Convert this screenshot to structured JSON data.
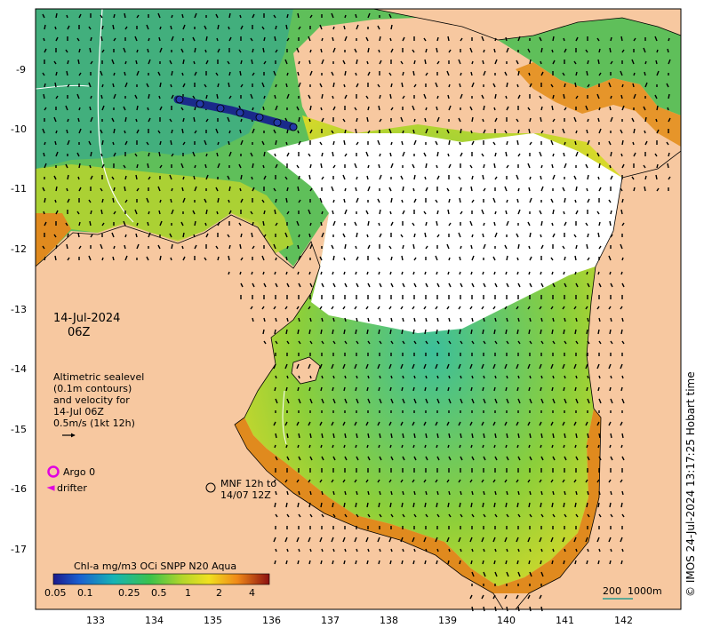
{
  "map": {
    "date_line1": "14-Jul-2024",
    "date_line2": "06Z",
    "legend_note": {
      "lines": [
        "Altimetric sealevel",
        "(0.1m contours)",
        "and velocity for",
        "14-Jul 06Z",
        "0.5m/s (1kt 12h)"
      ]
    },
    "argo_label": "Argo 0",
    "drifter_label": "drifter",
    "mnf_label_line1": "MNF 12h to",
    "mnf_label_line2": "14/07 12Z",
    "scale_bar": {
      "left_label": "200",
      "right_label": "1000m"
    },
    "credit": "© IMOS 24-Jul-2024 13:17:25 Hobart time",
    "colorbar": {
      "title": "Chl-a mg/m3 OCi SNPP N20 Aqua",
      "ticks": [
        "0.05",
        "0.1",
        "0.25",
        "0.5",
        "1",
        "2",
        "4"
      ]
    },
    "axes": {
      "lon_ticks": [
        "133",
        "134",
        "135",
        "136",
        "137",
        "138",
        "139",
        "140",
        "141",
        "142"
      ],
      "lat_ticks": [
        "-9",
        "-10",
        "-11",
        "-12",
        "-13",
        "-14",
        "-15",
        "-16",
        "-17"
      ]
    },
    "colors": {
      "land": "#f7c8a0",
      "ocean_low": "#2a9d8f",
      "ocean_mid": "#8ccf3a",
      "ocean_high": "#e08a1e",
      "argo": "#e000e0",
      "track": "#1a2a8a"
    }
  }
}
